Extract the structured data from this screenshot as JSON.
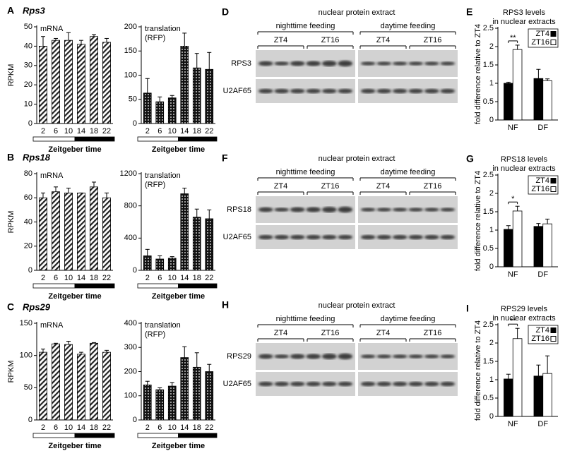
{
  "chart_data": [
    {
      "type": "bar",
      "panel": "A",
      "title": "Rps3",
      "annotation": [
        "mRNA"
      ],
      "ylabel": "RPKM",
      "xlabel": "Zeitgeber time",
      "pattern": "hatch",
      "categories": [
        "2",
        "6",
        "10",
        "14",
        "18",
        "22"
      ],
      "values": [
        40,
        43,
        43,
        41,
        45,
        42
      ],
      "errors": [
        5,
        1,
        4,
        2,
        1,
        2
      ],
      "ylim": [
        0,
        50
      ],
      "yticks": [
        0,
        10,
        20,
        30,
        40,
        50
      ]
    },
    {
      "type": "bar",
      "annotation": [
        "translation",
        "(RFP)"
      ],
      "xlabel": "Zeitgeber time",
      "pattern": "dots",
      "categories": [
        "2",
        "6",
        "10",
        "14",
        "18",
        "22"
      ],
      "values": [
        63,
        45,
        53,
        160,
        115,
        112
      ],
      "errors": [
        30,
        10,
        5,
        27,
        30,
        35
      ],
      "ylim": [
        0,
        200
      ],
      "yticks": [
        0,
        50,
        100,
        150,
        200
      ]
    },
    {
      "type": "bar",
      "panel": "E",
      "title": [
        "RPS3 levels",
        "in nuclear extracts"
      ],
      "ylabel": "fold difference relative to ZT4",
      "significance": "**",
      "categories": [
        "NF",
        "DF"
      ],
      "series": [
        {
          "name": "ZT4",
          "color": "#000000",
          "values": [
            1.0,
            1.13
          ],
          "errors": [
            0.03,
            0.25
          ]
        },
        {
          "name": "ZT16",
          "color": "#ffffff",
          "values": [
            1.92,
            1.07
          ],
          "errors": [
            0.12,
            0.05
          ]
        }
      ],
      "ylim": [
        0,
        2.5
      ],
      "yticks": [
        0,
        0.5,
        1,
        1.5,
        2,
        2.5
      ]
    },
    {
      "type": "bar",
      "panel": "B",
      "title": "Rps18",
      "annotation": [
        "mRNA"
      ],
      "ylabel": "RPKM",
      "xlabel": "Zeitgeber time",
      "pattern": "hatch",
      "categories": [
        "2",
        "6",
        "10",
        "14",
        "18",
        "22"
      ],
      "values": [
        60,
        65,
        64,
        64,
        69,
        60
      ],
      "errors": [
        4,
        4,
        4,
        0,
        4,
        4
      ],
      "ylim": [
        0,
        80
      ],
      "yticks": [
        0,
        20,
        40,
        60,
        80
      ]
    },
    {
      "type": "bar",
      "annotation": [
        "translation",
        "(RFP)"
      ],
      "xlabel": "Zeitgeber time",
      "pattern": "dots",
      "categories": [
        "2",
        "6",
        "10",
        "14",
        "18",
        "22"
      ],
      "values": [
        180,
        140,
        150,
        950,
        660,
        640
      ],
      "errors": [
        80,
        40,
        20,
        70,
        100,
        110
      ],
      "ylim": [
        0,
        1200
      ],
      "yticks": [
        0,
        400,
        800,
        1200
      ]
    },
    {
      "type": "bar",
      "panel": "G",
      "title": [
        "RPS18 levels",
        "in nuclear extracts"
      ],
      "ylabel": "fold difference relative to ZT4",
      "significance": "*",
      "categories": [
        "NF",
        "DF"
      ],
      "series": [
        {
          "name": "ZT4",
          "color": "#000000",
          "values": [
            1.02,
            1.1
          ],
          "errors": [
            0.1,
            0.08
          ]
        },
        {
          "name": "ZT16",
          "color": "#ffffff",
          "values": [
            1.52,
            1.17
          ],
          "errors": [
            0.13,
            0.13
          ]
        }
      ],
      "ylim": [
        0,
        2.5
      ],
      "yticks": [
        0,
        0.5,
        1,
        1.5,
        2,
        2.5
      ]
    },
    {
      "type": "bar",
      "panel": "C",
      "title": "Rps29",
      "annotation": [
        "mRNA"
      ],
      "ylabel": "RPKM",
      "xlabel": "Zeitgeber time",
      "pattern": "hatch",
      "categories": [
        "2",
        "6",
        "10",
        "14",
        "18",
        "22"
      ],
      "values": [
        105,
        118,
        117,
        102,
        119,
        105
      ],
      "errors": [
        5,
        1,
        5,
        3,
        1,
        3
      ],
      "ylim": [
        0,
        150
      ],
      "yticks": [
        0,
        50,
        100,
        150
      ]
    },
    {
      "type": "bar",
      "annotation": [
        "translation",
        "(RFP)"
      ],
      "xlabel": "Zeitgeber time",
      "pattern": "dots",
      "categories": [
        "2",
        "6",
        "10",
        "14",
        "18",
        "22"
      ],
      "values": [
        145,
        125,
        140,
        258,
        218,
        200
      ],
      "errors": [
        15,
        8,
        15,
        45,
        60,
        30
      ],
      "ylim": [
        0,
        400
      ],
      "yticks": [
        0,
        100,
        200,
        300,
        400
      ]
    },
    {
      "type": "bar",
      "panel": "I",
      "title": [
        "RPS29 levels",
        "in nuclear extracts"
      ],
      "ylabel": "fold difference relative to ZT4",
      "significance": "**",
      "categories": [
        "NF",
        "DF"
      ],
      "series": [
        {
          "name": "ZT4",
          "color": "#000000",
          "values": [
            1.02,
            1.1
          ],
          "errors": [
            0.13,
            0.3
          ]
        },
        {
          "name": "ZT16",
          "color": "#ffffff",
          "values": [
            2.12,
            1.17
          ],
          "errors": [
            0.28,
            0.48
          ]
        }
      ],
      "ylim": [
        0,
        2.5
      ],
      "yticks": [
        0,
        0.5,
        1,
        1.5,
        2,
        2.5
      ]
    }
  ],
  "blots": [
    {
      "panel": "D",
      "title": "nuclear protein extract",
      "groups": [
        "nighttime feeding",
        "daytime feeding"
      ],
      "timepoints": [
        "ZT4",
        "ZT16",
        "ZT4",
        "ZT16"
      ],
      "rows": [
        "RPS3",
        "U2AF65"
      ]
    },
    {
      "panel": "F",
      "title": "nuclear protein extract",
      "groups": [
        "nighttime feeding",
        "daytime feeding"
      ],
      "timepoints": [
        "ZT4",
        "ZT16",
        "ZT4",
        "ZT16"
      ],
      "rows": [
        "RPS18",
        "U2AF65"
      ]
    },
    {
      "panel": "H",
      "title": "nuclear protein extract",
      "groups": [
        "nighttime feeding",
        "daytime feeding"
      ],
      "timepoints": [
        "ZT4",
        "ZT16",
        "ZT4",
        "ZT16"
      ],
      "rows": [
        "RPS29",
        "U2AF65"
      ]
    }
  ]
}
